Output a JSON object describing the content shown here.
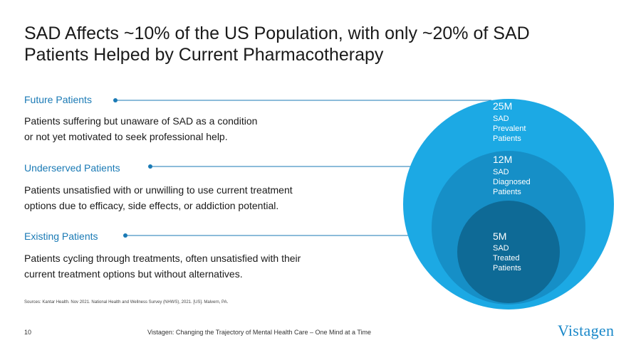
{
  "title": {
    "line1": "SAD Affects ~10% of the US Population, with only ~20% of SAD",
    "line2": "Patients Helped by Current Pharmacotherapy"
  },
  "segments": [
    {
      "category": "Future Patients",
      "desc_line1": "Patients suffering but unaware of SAD as a condition",
      "desc_line2": "or not yet motivated to seek professional help."
    },
    {
      "category": "Underserved Patients",
      "desc_line1": "Patients unsatisfied with or unwilling to use current treatment",
      "desc_line2": "options due to efficacy, side effects, or addiction potential."
    },
    {
      "category": "Existing Patients",
      "desc_line1": "Patients cycling through treatments, often unsatisfied with their",
      "desc_line2": "current treatment options but without alternatives."
    }
  ],
  "circles": [
    {
      "value": "25M",
      "label1": "SAD",
      "label2": "Prevalent",
      "label3": "Patients",
      "color": "#1ca9e4"
    },
    {
      "value": "12M",
      "label1": "SAD",
      "label2": "Diagnosed",
      "label3": "Patients",
      "color": "#168fc7"
    },
    {
      "value": "5M",
      "label1": "SAD",
      "label2": "Treated",
      "label3": "Patients",
      "color": "#0e6a96"
    }
  ],
  "colors": {
    "accent": "#1a7ab5",
    "connector": "#1a7ab5"
  },
  "sources": "Sources: Kantar Health. Nov 2021. National Health and Wellness Survey (NHWS), 2021. [US]. Malvern, PA.",
  "page_number": "10",
  "footer": "Vistagen: Changing the Trajectory of Mental Health Care – One Mind at a Time",
  "logo": "Vistagen"
}
